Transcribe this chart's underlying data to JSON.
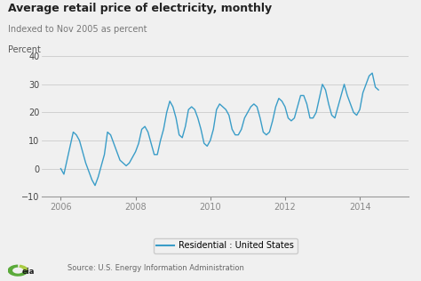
{
  "title": "Average retail price of electricity, monthly",
  "subtitle": "Indexed to Nov 2005 as percent",
  "ylabel": "Percent",
  "source": "Source: U.S. Energy Information Administration",
  "legend_label": "Residential : United States",
  "line_color": "#3a9dc8",
  "background_color": "#f0f0f0",
  "plot_bg_color": "#f0f0f0",
  "ylim": [
    -10,
    42
  ],
  "yticks": [
    -10,
    0,
    10,
    20,
    30,
    40
  ],
  "xlim": [
    2005.5,
    2015.3
  ],
  "xticks": [
    2006,
    2008,
    2010,
    2012,
    2014
  ],
  "data": [
    0,
    -2,
    3,
    8,
    13,
    12,
    10,
    6,
    2,
    -1,
    -4,
    -6,
    -3,
    1,
    5,
    13,
    12,
    9,
    6,
    3,
    2,
    1,
    2,
    4,
    6,
    9,
    14,
    15,
    13,
    9,
    5,
    5,
    10,
    14,
    20,
    24,
    22,
    18,
    12,
    11,
    15,
    21,
    22,
    21,
    18,
    14,
    9,
    8,
    10,
    14,
    21,
    23,
    22,
    21,
    19,
    14,
    12,
    12,
    14,
    18,
    20,
    22,
    23,
    22,
    18,
    13,
    12,
    13,
    17,
    22,
    25,
    24,
    22,
    18,
    17,
    18,
    22,
    26,
    26,
    23,
    18,
    18,
    20,
    25,
    30,
    28,
    23,
    19,
    18,
    22,
    26,
    30,
    26,
    23,
    20,
    19,
    21,
    27,
    30,
    33,
    34,
    29,
    28
  ]
}
